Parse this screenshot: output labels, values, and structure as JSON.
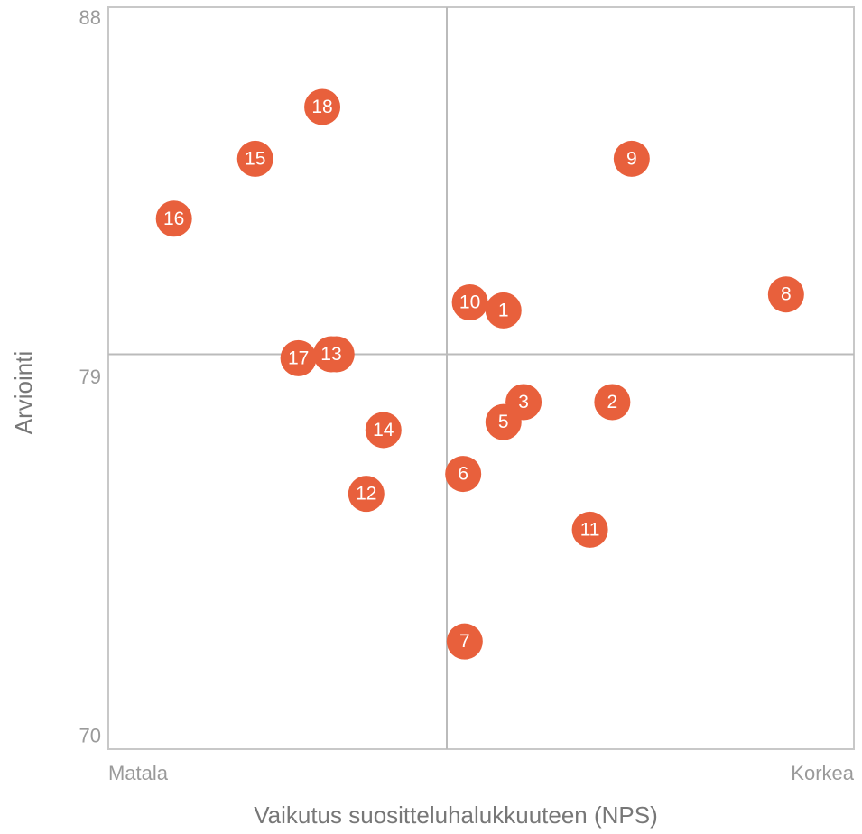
{
  "chart_data": {
    "type": "scatter",
    "x_label": "Vaikutus suositteluhalukkuuteen (NPS)",
    "y_label": "Arviointi",
    "labels": [
      "1",
      "2",
      "3",
      "4",
      "5",
      "6",
      "7",
      "8",
      "9",
      "10",
      "11",
      "12",
      "13",
      "14",
      "15",
      "16",
      "17",
      "18"
    ],
    "x": [
      53.0,
      67.6,
      55.7,
      30.6,
      53.0,
      47.6,
      47.8,
      90.9,
      70.2,
      48.5,
      64.6,
      34.6,
      29.9,
      36.9,
      19.7,
      8.8,
      25.5,
      28.7
    ],
    "values": [
      80.7,
      78.4,
      78.4,
      79.6,
      77.9,
      76.6,
      72.4,
      81.1,
      84.5,
      80.9,
      75.2,
      76.1,
      79.6,
      77.7,
      84.5,
      83.0,
      79.5,
      85.8
    ],
    "color": "#e8603c",
    "xlim": [
      0,
      100
    ],
    "xticks": [
      {
        "value": 0,
        "label": "Matala"
      },
      {
        "value": 100,
        "label": "Korkea"
      }
    ],
    "ylim": [
      69.7,
      88.3
    ],
    "yticks": [
      70,
      79,
      88
    ],
    "reference_x": 45.4,
    "reference_y": 79.6
  }
}
